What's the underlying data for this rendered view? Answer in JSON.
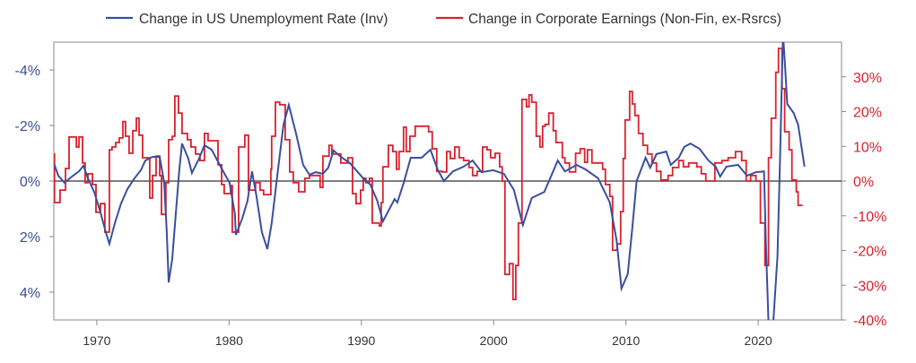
{
  "chart_data": {
    "type": "line",
    "title": "",
    "xlabel": "",
    "ylabel_left": "",
    "ylabel_right": "",
    "legend_position": "top",
    "colors": {
      "unemployment": "#3a4f9c",
      "earnings": "#d9212f",
      "zero_line": "#333333",
      "axis": "#8a8a8a"
    },
    "x_axis": {
      "range": [
        1966.75,
        2026.3
      ],
      "ticks": [
        1970,
        1980,
        1990,
        2000,
        2010,
        2020
      ],
      "tick_labels": [
        "1970",
        "1980",
        "1990",
        "2000",
        "2010",
        "2020"
      ]
    },
    "y_left": {
      "range": [
        5,
        -5
      ],
      "inverted": true,
      "ticks": [
        -4,
        -2,
        0,
        2,
        4
      ],
      "tick_labels": [
        "-4%",
        "-2%",
        "0%",
        "2%",
        "4%"
      ]
    },
    "y_right": {
      "range": [
        -40,
        40
      ],
      "ticks": [
        30,
        20,
        10,
        0,
        -10,
        -20,
        -30,
        -40
      ],
      "tick_labels": [
        "30%",
        "20%",
        "10%",
        "0%",
        "-10%",
        "-20%",
        "-30%",
        "-40%"
      ]
    },
    "series": [
      {
        "name": "Change in US Unemployment Rate (Inv)",
        "axis": "left",
        "style": "line",
        "points": [
          [
            1966.75,
            -0.65
          ],
          [
            1967.09,
            -0.19
          ],
          [
            1967.56,
            0.06
          ],
          [
            1968.11,
            -0.16
          ],
          [
            1968.65,
            -0.35
          ],
          [
            1968.99,
            -0.55
          ],
          [
            1969.33,
            -0.1
          ],
          [
            1969.8,
            0.39
          ],
          [
            1970.28,
            1.13
          ],
          [
            1970.68,
            1.84
          ],
          [
            1970.95,
            2.26
          ],
          [
            1971.36,
            1.52
          ],
          [
            1971.83,
            0.81
          ],
          [
            1972.31,
            0.29
          ],
          [
            1972.85,
            -0.1
          ],
          [
            1973.33,
            -0.39
          ],
          [
            1973.67,
            -0.74
          ],
          [
            1974.21,
            -0.87
          ],
          [
            1974.75,
            -0.87
          ],
          [
            1975.09,
            0.06
          ],
          [
            1975.29,
            1.84
          ],
          [
            1975.43,
            3.65
          ],
          [
            1975.7,
            2.8
          ],
          [
            1975.97,
            1.19
          ],
          [
            1976.24,
            -0.42
          ],
          [
            1976.44,
            -1.35
          ],
          [
            1976.92,
            -0.81
          ],
          [
            1977.19,
            -0.29
          ],
          [
            1977.73,
            -0.81
          ],
          [
            1978.14,
            -1.29
          ],
          [
            1978.68,
            -1.13
          ],
          [
            1979.29,
            -0.58
          ],
          [
            1979.77,
            -0.16
          ],
          [
            1980.04,
            0.06
          ],
          [
            1980.44,
            1.19
          ],
          [
            1980.51,
            1.94
          ],
          [
            1980.99,
            1.35
          ],
          [
            1981.39,
            0.71
          ],
          [
            1981.73,
            -0.35
          ],
          [
            1982.07,
            0.55
          ],
          [
            1982.48,
            1.84
          ],
          [
            1982.89,
            2.45
          ],
          [
            1983.22,
            1.52
          ],
          [
            1983.7,
            -0.42
          ],
          [
            1984.11,
            -2.03
          ],
          [
            1984.51,
            -2.74
          ],
          [
            1985.06,
            -1.71
          ],
          [
            1985.6,
            -0.58
          ],
          [
            1986.07,
            -0.23
          ],
          [
            1986.55,
            -0.32
          ],
          [
            1987.09,
            -0.26
          ],
          [
            1987.5,
            -0.48
          ],
          [
            1987.9,
            -1.1
          ],
          [
            1988.45,
            -0.87
          ],
          [
            1989.12,
            -0.65
          ],
          [
            1990.14,
            -0.1
          ],
          [
            1990.68,
            0.13
          ],
          [
            1991.2,
            0.71
          ],
          [
            1991.63,
            1.45
          ],
          [
            1992.51,
            0.65
          ],
          [
            1992.72,
            0.77
          ],
          [
            1993.2,
            0.06
          ],
          [
            1993.73,
            -0.84
          ],
          [
            1994.55,
            -0.84
          ],
          [
            1995.22,
            -1.13
          ],
          [
            1995.76,
            -0.42
          ],
          [
            1996.24,
            0
          ],
          [
            1996.92,
            -0.35
          ],
          [
            1997.73,
            -0.52
          ],
          [
            1998.41,
            -0.74
          ],
          [
            1999.09,
            -0.32
          ],
          [
            1999.97,
            -0.39
          ],
          [
            2000.78,
            -0.26
          ],
          [
            2001.53,
            0.32
          ],
          [
            2002.21,
            1.58
          ],
          [
            2002.88,
            0.61
          ],
          [
            2003.83,
            0.39
          ],
          [
            2004.85,
            -0.74
          ],
          [
            2005.39,
            -0.35
          ],
          [
            2006.27,
            -0.58
          ],
          [
            2006.95,
            -0.42
          ],
          [
            2007.9,
            -0.1
          ],
          [
            2008.78,
            0.77
          ],
          [
            2009.3,
            2.16
          ],
          [
            2009.66,
            3.87
          ],
          [
            2010.14,
            3.35
          ],
          [
            2010.48,
            1.68
          ],
          [
            2010.81,
            0
          ],
          [
            2011.49,
            -0.84
          ],
          [
            2011.83,
            -0.48
          ],
          [
            2012.31,
            -0.97
          ],
          [
            2013.05,
            -1.06
          ],
          [
            2013.39,
            -0.58
          ],
          [
            2014.0,
            -0.84
          ],
          [
            2014.41,
            -1.23
          ],
          [
            2014.88,
            -1.35
          ],
          [
            2015.56,
            -1.16
          ],
          [
            2016.24,
            -0.74
          ],
          [
            2016.78,
            -0.52
          ],
          [
            2017.12,
            -0.16
          ],
          [
            2017.6,
            -0.52
          ],
          [
            2018.48,
            -0.58
          ],
          [
            2019.16,
            -0.19
          ],
          [
            2019.83,
            -0.32
          ],
          [
            2020.44,
            -0.35
          ],
          [
            2020.58,
            2.26
          ],
          [
            2020.8,
            5.4
          ],
          [
            2021.1,
            5.4
          ],
          [
            2021.46,
            2.71
          ],
          [
            2021.66,
            -0.97
          ],
          [
            2021.87,
            -5.3
          ],
          [
            2022.0,
            -4.39
          ],
          [
            2022.2,
            -2.77
          ],
          [
            2022.68,
            -2.45
          ],
          [
            2023.02,
            -2.03
          ],
          [
            2023.5,
            -0.52
          ]
        ]
      },
      {
        "name": "Change in Corporate Earnings (Non-Fin, ex-Rsrcs)",
        "axis": "right",
        "style": "step",
        "end": 2023.36,
        "points": [
          [
            1966.75,
            7.8
          ],
          [
            1966.8,
            -6.2
          ],
          [
            1967.22,
            -2.6
          ],
          [
            1967.63,
            3.6
          ],
          [
            1967.9,
            12.7
          ],
          [
            1968.45,
            9.8
          ],
          [
            1968.65,
            12.7
          ],
          [
            1968.92,
            5.2
          ],
          [
            1969.12,
            -0.5
          ],
          [
            1969.33,
            2.1
          ],
          [
            1969.67,
            -1.0
          ],
          [
            1969.94,
            -9.0
          ],
          [
            1970.28,
            -6.5
          ],
          [
            1970.61,
            -14.7
          ],
          [
            1970.95,
            9.0
          ],
          [
            1971.15,
            9.8
          ],
          [
            1971.43,
            11.1
          ],
          [
            1971.7,
            12.4
          ],
          [
            1971.97,
            17.1
          ],
          [
            1972.17,
            12.9
          ],
          [
            1972.44,
            8.0
          ],
          [
            1972.72,
            14.5
          ],
          [
            1972.99,
            18.1
          ],
          [
            1973.19,
            13.2
          ],
          [
            1973.46,
            6.7
          ],
          [
            1974.0,
            -4.9
          ],
          [
            1974.21,
            1.6
          ],
          [
            1974.48,
            7.2
          ],
          [
            1974.75,
            1.6
          ],
          [
            1974.89,
            -9.6
          ],
          [
            1975.22,
            -0.5
          ],
          [
            1975.43,
            11.9
          ],
          [
            1975.7,
            12.9
          ],
          [
            1975.9,
            24.5
          ],
          [
            1976.17,
            19.6
          ],
          [
            1976.44,
            13.7
          ],
          [
            1976.85,
            11.9
          ],
          [
            1977.12,
            9.8
          ],
          [
            1977.46,
            7.8
          ],
          [
            1977.8,
            5.9
          ],
          [
            1978.14,
            13.7
          ],
          [
            1978.41,
            11.6
          ],
          [
            1979.16,
            4.7
          ],
          [
            1979.43,
            -1.0
          ],
          [
            1979.63,
            -3.6
          ],
          [
            1980.11,
            -1.3
          ],
          [
            1980.24,
            -14.7
          ],
          [
            1980.72,
            9.8
          ],
          [
            1981.19,
            13.2
          ],
          [
            1981.46,
            -2.6
          ],
          [
            1982.0,
            -0.5
          ],
          [
            1982.34,
            -2.6
          ],
          [
            1982.61,
            -3.9
          ],
          [
            1983.16,
            3.4
          ],
          [
            1983.22,
            12.9
          ],
          [
            1983.5,
            22.7
          ],
          [
            1983.83,
            22.0
          ],
          [
            1984.24,
            11.9
          ],
          [
            1984.58,
            2.6
          ],
          [
            1984.85,
            -0.5
          ],
          [
            1985.26,
            -3.1
          ],
          [
            1985.73,
            0.8
          ],
          [
            1986.07,
            1.6
          ],
          [
            1986.88,
            -1.8
          ],
          [
            1987.09,
            7.2
          ],
          [
            1987.56,
            10.3
          ],
          [
            1987.77,
            7.8
          ],
          [
            1988.45,
            5.2
          ],
          [
            1988.99,
            6.7
          ],
          [
            1989.33,
            -3.6
          ],
          [
            1989.6,
            -6.5
          ],
          [
            1989.94,
            -2.6
          ],
          [
            1990.14,
            0.8
          ],
          [
            1990.34,
            -0.5
          ],
          [
            1990.61,
            0.8
          ],
          [
            1990.82,
            -12.1
          ],
          [
            1991.36,
            -12.9
          ],
          [
            1991.5,
            -6.2
          ],
          [
            1991.63,
            4.1
          ],
          [
            1992.04,
            10.3
          ],
          [
            1992.38,
            8.5
          ],
          [
            1992.65,
            3.4
          ],
          [
            1992.85,
            8.5
          ],
          [
            1993.19,
            15.5
          ],
          [
            1993.39,
            8.5
          ],
          [
            1993.67,
            12.9
          ],
          [
            1994.07,
            15.8
          ],
          [
            1995.09,
            14.2
          ],
          [
            1995.36,
            9.3
          ],
          [
            1995.7,
            2.8
          ],
          [
            1996.11,
            2.6
          ],
          [
            1996.45,
            8.5
          ],
          [
            1996.72,
            6.5
          ],
          [
            1997.06,
            9.8
          ],
          [
            1997.39,
            6.7
          ],
          [
            1997.73,
            5.9
          ],
          [
            1998.14,
            3.9
          ],
          [
            1998.41,
            1.6
          ],
          [
            1998.75,
            2.8
          ],
          [
            1999.16,
            9.8
          ],
          [
            1999.5,
            9.0
          ],
          [
            1999.77,
            6.7
          ],
          [
            2000.11,
            8.0
          ],
          [
            2000.45,
            4.1
          ],
          [
            2000.65,
            0
          ],
          [
            2000.85,
            -26.9
          ],
          [
            2001.19,
            -23.8
          ],
          [
            2001.46,
            -34.1
          ],
          [
            2001.67,
            -24.3
          ],
          [
            2001.87,
            -12.1
          ],
          [
            2002.14,
            23.5
          ],
          [
            2002.48,
            21.4
          ],
          [
            2002.68,
            24.8
          ],
          [
            2002.88,
            22.7
          ],
          [
            2003.22,
            12.9
          ],
          [
            2003.5,
            9.8
          ],
          [
            2003.7,
            15.8
          ],
          [
            2003.9,
            16.3
          ],
          [
            2004.17,
            19.6
          ],
          [
            2004.51,
            14.5
          ],
          [
            2004.71,
            11.1
          ],
          [
            2005.19,
            6.7
          ],
          [
            2005.39,
            5.2
          ],
          [
            2005.73,
            2.6
          ],
          [
            2006.2,
            8.0
          ],
          [
            2006.54,
            9.3
          ],
          [
            2006.88,
            5.4
          ],
          [
            2007.09,
            9.0
          ],
          [
            2007.43,
            5.2
          ],
          [
            2008.24,
            3.4
          ],
          [
            2008.45,
            -1.0
          ],
          [
            2008.78,
            -4.4
          ],
          [
            2008.99,
            -19.9
          ],
          [
            2009.33,
            -18.1
          ],
          [
            2009.6,
            -8.8
          ],
          [
            2009.8,
            6.5
          ],
          [
            2009.94,
            17.6
          ],
          [
            2010.28,
            25.8
          ],
          [
            2010.48,
            22.2
          ],
          [
            2010.68,
            18.9
          ],
          [
            2010.95,
            13.7
          ],
          [
            2011.29,
            10.3
          ],
          [
            2011.63,
            7.8
          ],
          [
            2011.97,
            5.2
          ],
          [
            2012.31,
            2.8
          ],
          [
            2012.65,
            0.3
          ],
          [
            2013.19,
            1.6
          ],
          [
            2013.53,
            3.9
          ],
          [
            2014.0,
            5.9
          ],
          [
            2014.34,
            4.1
          ],
          [
            2014.75,
            5.2
          ],
          [
            2015.36,
            4.1
          ],
          [
            2015.7,
            2.1
          ],
          [
            2016.04,
            0
          ],
          [
            2016.72,
            5.2
          ],
          [
            2017.26,
            5.9
          ],
          [
            2017.73,
            6.7
          ],
          [
            2018.28,
            8.5
          ],
          [
            2018.75,
            5.9
          ],
          [
            2019.09,
            0
          ],
          [
            2019.43,
            1.6
          ],
          [
            2019.83,
            0
          ],
          [
            2020.17,
            -12.1
          ],
          [
            2020.51,
            -24.3
          ],
          [
            2020.78,
            6.7
          ],
          [
            2020.99,
            18.1
          ],
          [
            2021.33,
            31.3
          ],
          [
            2021.53,
            38.2
          ],
          [
            2021.8,
            26.6
          ],
          [
            2022.0,
            14.2
          ],
          [
            2022.34,
            9.0
          ],
          [
            2022.55,
            0.3
          ],
          [
            2022.88,
            -3.1
          ],
          [
            2023.02,
            -7.0
          ]
        ]
      }
    ]
  }
}
